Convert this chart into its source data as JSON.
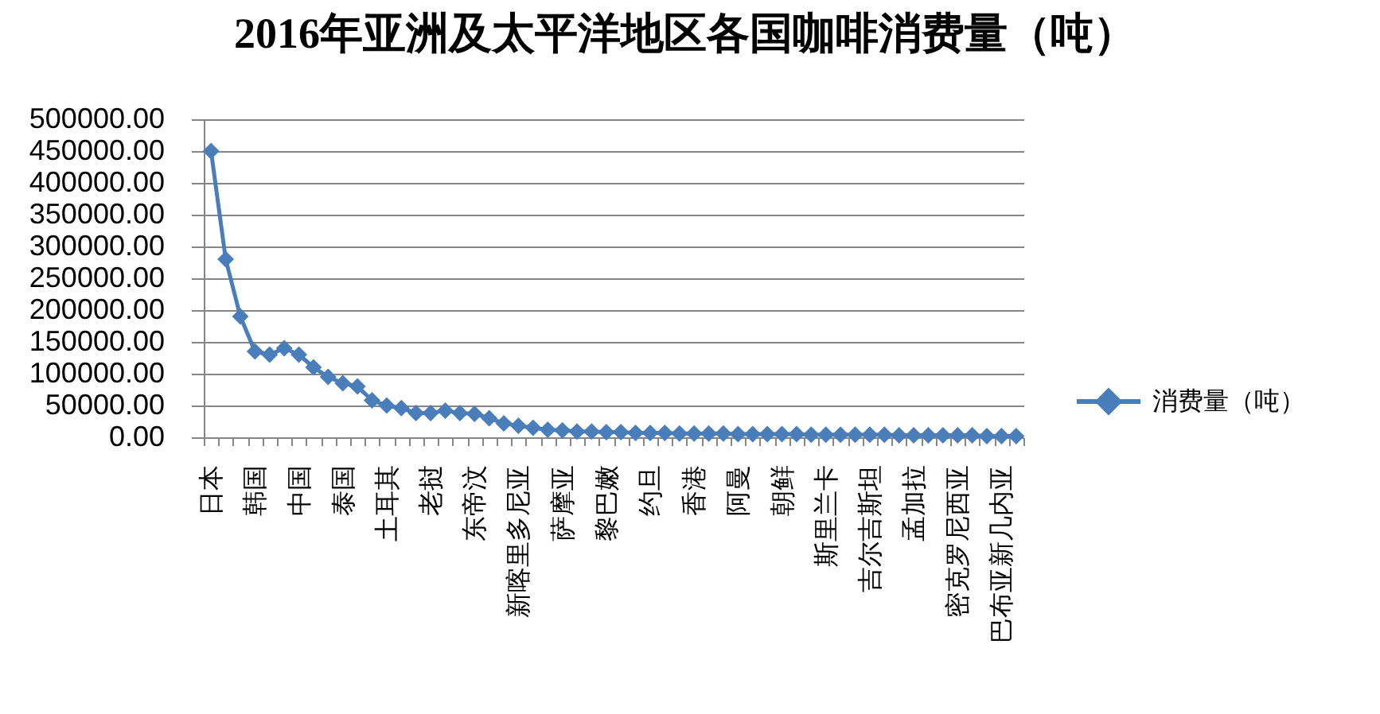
{
  "chart_data": {
    "type": "line",
    "title": "2016年亚洲及太平洋地区各国咖啡消费量（吨）",
    "categories": [
      "日本",
      null,
      null,
      "韩国",
      null,
      null,
      "中国",
      null,
      null,
      "泰国",
      null,
      null,
      "土耳其",
      null,
      null,
      "老挝",
      null,
      null,
      "东帝汶",
      null,
      null,
      "新喀里多尼亚",
      null,
      null,
      "萨摩亚",
      null,
      null,
      "黎巴嫩",
      null,
      null,
      "约旦",
      null,
      null,
      "香港",
      null,
      null,
      "阿曼",
      null,
      null,
      "朝鲜",
      null,
      null,
      "斯里兰卡",
      null,
      null,
      "吉尔吉斯坦",
      null,
      null,
      "孟加拉",
      null,
      null,
      "密克罗尼西亚",
      null,
      null,
      "巴布亚新几内亚",
      null
    ],
    "series": [
      {
        "name": "消费量（吨）",
        "color": "#4a7ebb",
        "values": [
          450000,
          280000,
          190000,
          135000,
          130000,
          140000,
          130000,
          110000,
          95000,
          85000,
          80000,
          58000,
          50000,
          46000,
          38000,
          38000,
          42000,
          38000,
          37000,
          30000,
          22000,
          18000,
          15000,
          12000,
          11000,
          9000,
          9000,
          8000,
          8000,
          7000,
          7000,
          7000,
          6000,
          6000,
          6000,
          6000,
          5000,
          5000,
          5000,
          5000,
          5000,
          4000,
          4000,
          4000,
          4000,
          4000,
          4000,
          3000,
          3000,
          3000,
          3000,
          3000,
          3000,
          2000,
          2000,
          2000
        ]
      }
    ],
    "ylim": [
      0,
      500000
    ],
    "yticks": [
      {
        "value": 0,
        "label": "0.00"
      },
      {
        "value": 50000,
        "label": "50000.00"
      },
      {
        "value": 100000,
        "label": "100000.00"
      },
      {
        "value": 150000,
        "label": "150000.00"
      },
      {
        "value": 200000,
        "label": "200000.00"
      },
      {
        "value": 250000,
        "label": "250000.00"
      },
      {
        "value": 300000,
        "label": "300000.00"
      },
      {
        "value": 350000,
        "label": "350000.00"
      },
      {
        "value": 400000,
        "label": "400000.00"
      },
      {
        "value": 450000,
        "label": "450000.00"
      },
      {
        "value": 500000,
        "label": "500000.00"
      }
    ],
    "grid": "y",
    "legend": "right",
    "marker": "diamond",
    "line_style": "solid"
  }
}
